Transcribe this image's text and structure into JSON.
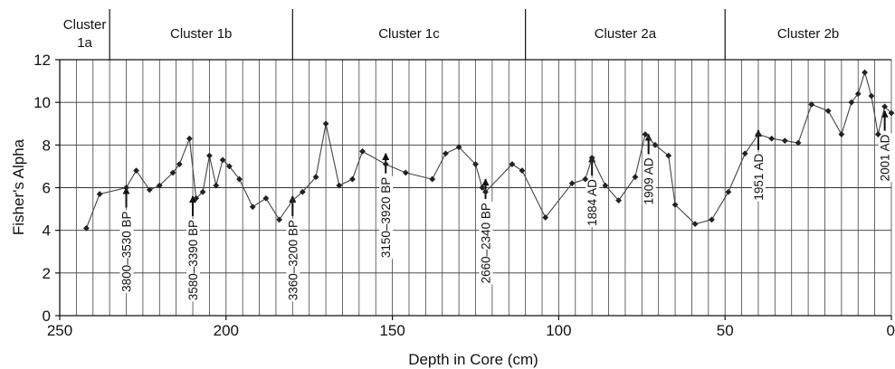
{
  "chart_data": {
    "type": "line",
    "xlabel": "Depth in Core (cm)",
    "ylabel": "Fisher's Alpha",
    "xlim": [
      250,
      0
    ],
    "ylim": [
      0,
      12
    ],
    "x_reversed": true,
    "x_ticks": [
      250,
      200,
      150,
      100,
      50,
      0
    ],
    "y_ticks": [
      0,
      2,
      4,
      6,
      8,
      10,
      12
    ],
    "grid": true,
    "series": [
      {
        "points": [
          [
            242,
            4.1
          ],
          [
            238,
            5.7
          ],
          [
            230,
            6.0
          ],
          [
            227,
            6.8
          ],
          [
            223,
            5.9
          ],
          [
            220,
            6.1
          ],
          [
            216,
            6.7
          ],
          [
            214,
            7.1
          ],
          [
            211,
            8.3
          ],
          [
            209,
            5.5
          ],
          [
            207,
            5.8
          ],
          [
            205,
            7.5
          ],
          [
            203,
            6.1
          ],
          [
            201,
            7.3
          ],
          [
            199,
            7.0
          ],
          [
            196,
            6.4
          ],
          [
            192,
            5.1
          ],
          [
            188,
            5.5
          ],
          [
            184,
            4.5
          ],
          [
            180,
            5.4
          ],
          [
            177,
            5.8
          ],
          [
            173,
            6.5
          ],
          [
            170,
            9.0
          ],
          [
            166,
            6.1
          ],
          [
            162,
            6.4
          ],
          [
            159,
            7.7
          ],
          [
            152,
            7.1
          ],
          [
            146,
            6.7
          ],
          [
            138,
            6.4
          ],
          [
            134,
            7.6
          ],
          [
            130,
            7.9
          ],
          [
            125,
            7.1
          ],
          [
            123,
            6.0
          ],
          [
            122,
            5.8
          ],
          [
            114,
            7.1
          ],
          [
            111,
            6.8
          ],
          [
            104,
            4.6
          ],
          [
            96,
            6.2
          ],
          [
            92,
            6.4
          ],
          [
            90,
            7.4
          ],
          [
            86,
            6.1
          ],
          [
            82,
            5.4
          ],
          [
            77,
            6.5
          ],
          [
            74,
            8.5
          ],
          [
            71,
            8.0
          ],
          [
            67,
            7.5
          ],
          [
            65,
            5.2
          ],
          [
            59,
            4.3
          ],
          [
            54,
            4.5
          ],
          [
            49,
            5.8
          ],
          [
            44,
            7.6
          ],
          [
            40,
            8.5
          ],
          [
            36,
            8.3
          ],
          [
            32,
            8.2
          ],
          [
            28,
            8.1
          ],
          [
            24,
            9.9
          ],
          [
            19,
            9.6
          ],
          [
            15,
            8.5
          ],
          [
            12,
            10.0
          ],
          [
            10,
            10.4
          ],
          [
            8,
            11.4
          ],
          [
            6,
            10.3
          ],
          [
            4,
            8.5
          ],
          [
            2,
            9.8
          ],
          [
            0,
            9.5
          ]
        ]
      }
    ],
    "clusters": [
      {
        "label_line1": "Cluster",
        "label_line2": "1a",
        "from": 250,
        "to": 235
      },
      {
        "label_line1": "Cluster 1b",
        "label_line2": "",
        "from": 235,
        "to": 180
      },
      {
        "label_line1": "Cluster 1c",
        "label_line2": "",
        "from": 180,
        "to": 110
      },
      {
        "label_line1": "Cluster 2a",
        "label_line2": "",
        "from": 110,
        "to": 50
      },
      {
        "label_line1": "Cluster 2b",
        "label_line2": "",
        "from": 50,
        "to": 0
      }
    ],
    "annotations": [
      {
        "text": "3800–3530 BP",
        "depth": 230,
        "arrow_to": 6.0
      },
      {
        "text": "3580–3390 BP",
        "depth": 210,
        "arrow_to": 5.6
      },
      {
        "text": "3360–3200 BP",
        "depth": 180,
        "arrow_to": 5.6
      },
      {
        "text": "3150–3920 BP",
        "depth": 152,
        "arrow_to": 7.6
      },
      {
        "text": "2660–2340 BP",
        "depth": 122,
        "arrow_to": 6.4
      },
      {
        "text": "1884 AD",
        "depth": 90,
        "arrow_to": 7.5
      },
      {
        "text": "1909 AD",
        "depth": 73,
        "arrow_to": 8.5
      },
      {
        "text": "1951 AD",
        "depth": 40,
        "arrow_to": 8.7
      },
      {
        "text": "2001 AD",
        "depth": 2,
        "arrow_to": 9.6
      }
    ]
  }
}
